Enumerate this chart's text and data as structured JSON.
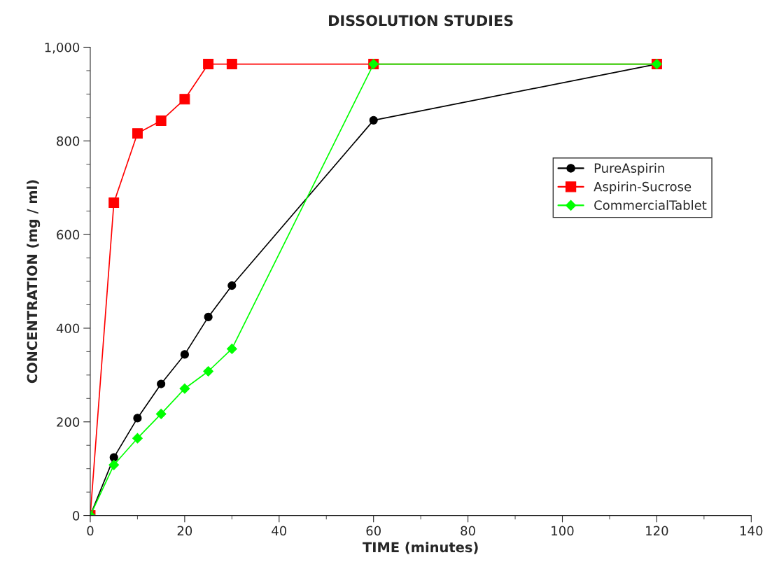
{
  "chart_data": {
    "type": "line",
    "title": "DISSOLUTION STUDIES",
    "xlabel": "TIME (minutes)",
    "ylabel": "CONCENTRATION (mg / ml)",
    "x": [
      0,
      5,
      10,
      15,
      20,
      25,
      30,
      60,
      120
    ],
    "series": [
      {
        "name": "PureAspirin",
        "color": "#000000",
        "marker": "circle",
        "values": [
          0,
          124,
          208,
          281,
          344,
          424,
          491,
          844,
          964
        ]
      },
      {
        "name": "Aspirin-Sucrose",
        "color": "#ff0000",
        "marker": "square",
        "values": [
          0,
          668,
          816,
          843,
          889,
          964,
          964,
          964,
          964
        ]
      },
      {
        "name": "CommercialTablet",
        "color": "#00ff00",
        "marker": "diamond",
        "values": [
          0,
          108,
          165,
          217,
          271,
          308,
          356,
          964,
          964
        ]
      }
    ],
    "xlim": [
      0,
      140
    ],
    "xticks": [
      0,
      20,
      40,
      60,
      80,
      100,
      120,
      140
    ],
    "ylim": [
      0,
      1000
    ],
    "yticks": [
      0,
      200,
      400,
      600,
      800,
      {
        "value": 1000,
        "label": "1,000"
      }
    ],
    "grid": false,
    "legend": "right",
    "line_style": "solid"
  }
}
